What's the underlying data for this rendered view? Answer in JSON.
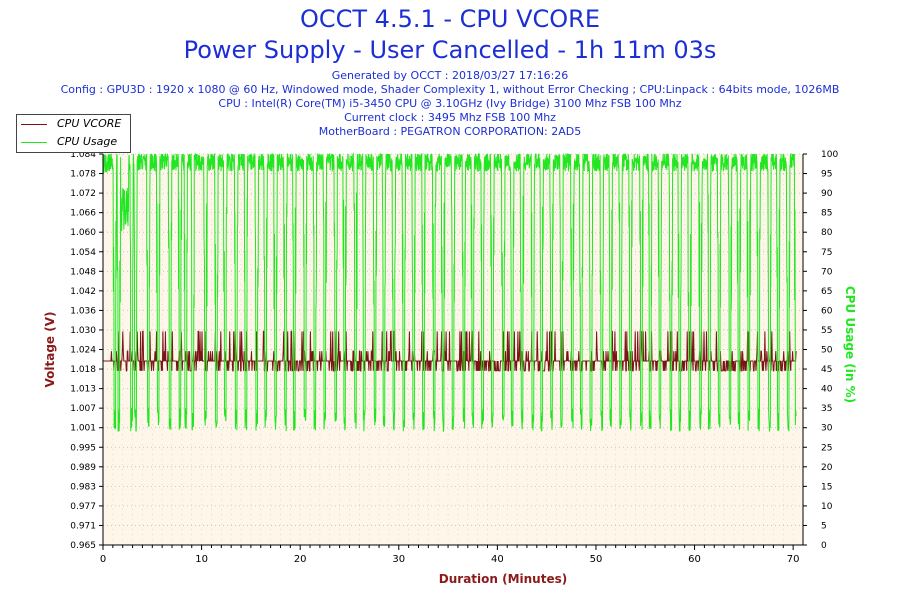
{
  "chart_data": {
    "type": "line",
    "title": "OCCT 4.5.1 - CPU VCORE",
    "subtitle": "Power Supply - User Cancelled - 1h 11m 03s",
    "info_lines": [
      "Generated by OCCT : 2018/03/27 17:16:26",
      "Config : GPU3D : 1920 x 1080 @ 60 Hz, Windowed mode, Shader Complexity 1, without Error Checking ; CPU:Linpack : 64bits mode, 1026MB",
      "CPU : Intel(R) Core(TM) i5-3450 CPU @ 3.10GHz (Ivy Bridge) 3100 Mhz FSB 100 Mhz",
      "Current clock : 3495 Mhz FSB 100 Mhz",
      "MotherBoard : PEGATRON CORPORATION: 2AD5"
    ],
    "xlabel": "Duration (Minutes)",
    "ylabel": "Voltage (V)",
    "y2label": "CPU Usage (in %)",
    "xlim": [
      0,
      71
    ],
    "ylim": [
      0.965,
      1.084
    ],
    "y2lim": [
      0,
      100
    ],
    "x_ticks": [
      "0",
      "10",
      "20",
      "30",
      "40",
      "50",
      "60",
      "70"
    ],
    "y_ticks": [
      "0.965",
      "0.971",
      "0.977",
      "0.983",
      "0.989",
      "0.995",
      "1.001",
      "1.007",
      "1.013",
      "1.018",
      "1.024",
      "1.030",
      "1.036",
      "1.042",
      "1.048",
      "1.054",
      "1.060",
      "1.066",
      "1.072",
      "1.078",
      "1.084"
    ],
    "y2_ticks": [
      "0",
      "5",
      "10",
      "15",
      "20",
      "25",
      "30",
      "35",
      "40",
      "45",
      "50",
      "55",
      "60",
      "65",
      "70",
      "75",
      "80",
      "85",
      "90",
      "95",
      "100"
    ],
    "legend_position": "top-left",
    "series": [
      {
        "name": "CPU VCORE",
        "color": "#7b1414",
        "axis": "left",
        "typical_value": 1.021,
        "low_value": 1.018,
        "high_value": 1.03
      },
      {
        "name": "CPU Usage",
        "color": "#22e622",
        "axis": "right",
        "typical_value": 98,
        "dip_value": 29,
        "dip_times_min": [
          1.2,
          1.6,
          2.9,
          3.3,
          4.6,
          5.6,
          6.8,
          7.8,
          8.4,
          9.1,
          10.4,
          11.5,
          12.4,
          13.5,
          14.5,
          15.6,
          16.5,
          17.5,
          18.5,
          19.4,
          20.5,
          21.5,
          22.5,
          23.6,
          24.5,
          25.6,
          26.5,
          27.6,
          28.5,
          29.5,
          30.5,
          31.5,
          32.5,
          33.6,
          34.5,
          35.5,
          36.6,
          37.5,
          38.5,
          39.5,
          40.6,
          41.5,
          42.5,
          43.6,
          44.5,
          45.5,
          46.5,
          47.6,
          48.5,
          49.5,
          50.6,
          51.5,
          52.5,
          53.5,
          54.6,
          55.5,
          56.5,
          57.6,
          58.5,
          59.5,
          60.6,
          61.5,
          62.5,
          63.6,
          64.5,
          65.5,
          66.5,
          67.6,
          68.5,
          69.5,
          70.3
        ]
      }
    ],
    "grid": true,
    "plot_background": "#fdf6e9"
  }
}
